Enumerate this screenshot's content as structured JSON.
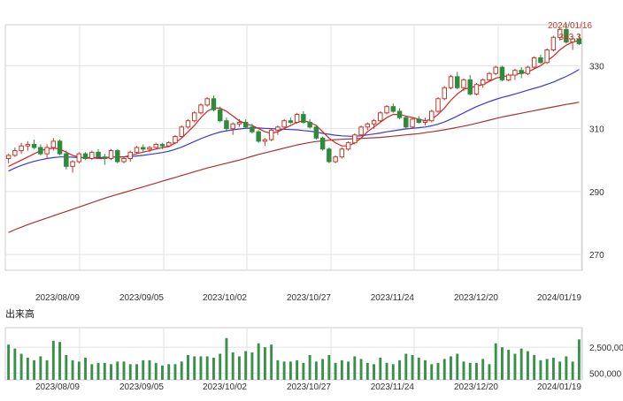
{
  "chart_data": [
    {
      "type": "candlestick",
      "x_tick_labels": [
        "2023/08/09",
        "2023/09/05",
        "2023/10/02",
        "2023/10/27",
        "2023/11/24",
        "2023/12/20",
        "2024/01/19"
      ],
      "y_tick_labels": [
        "330",
        "310",
        "290",
        "270"
      ],
      "ylim": [
        265,
        343
      ],
      "grid": true,
      "annotation": {
        "date": "2024/01/16",
        "value": "343.3"
      },
      "series": [
        {
          "type": "candlestick",
          "values": [
            [
              300.5,
              302,
              299,
              301.5
            ],
            [
              301.5,
              304,
              301,
              303
            ],
            [
              303,
              305.5,
              302,
              304.5
            ],
            [
              304.5,
              306,
              303,
              305
            ],
            [
              305,
              306.5,
              303.5,
              304
            ],
            [
              304,
              305,
              301.5,
              302
            ],
            [
              302,
              305,
              300.5,
              304
            ],
            [
              304,
              307,
              303,
              306
            ],
            [
              306,
              306.5,
              301.5,
              302
            ],
            [
              302,
              303,
              297,
              298
            ],
            [
              298,
              300,
              296,
              299.5
            ],
            [
              299.5,
              302.5,
              299,
              302
            ],
            [
              302,
              302.5,
              300,
              300.5
            ],
            [
              300.5,
              303,
              300,
              302.5
            ],
            [
              302.5,
              303.5,
              300.5,
              301
            ],
            [
              301,
              302,
              298.5,
              300.5
            ],
            [
              300.5,
              303.5,
              300,
              303
            ],
            [
              303,
              303.5,
              299,
              299.5
            ],
            [
              299.5,
              301,
              299,
              300.5
            ],
            [
              300.5,
              303,
              299.5,
              302.5
            ],
            [
              302.5,
              304.5,
              302,
              304
            ],
            [
              304,
              305,
              302.5,
              303.5
            ],
            [
              303.5,
              304.5,
              302.5,
              304
            ],
            [
              304,
              305.5,
              303.5,
              305
            ],
            [
              305,
              305.5,
              303.5,
              304.5
            ],
            [
              304.5,
              306,
              304,
              305.5
            ],
            [
              305.5,
              308,
              305,
              307.5
            ],
            [
              307.5,
              311,
              307,
              310.5
            ],
            [
              310.5,
              313,
              310,
              312.5
            ],
            [
              312.5,
              315.5,
              312,
              315
            ],
            [
              315,
              318,
              314.5,
              317.5
            ],
            [
              317.5,
              320,
              317,
              319.5
            ],
            [
              319.5,
              320.5,
              315.5,
              316
            ],
            [
              316,
              317,
              312,
              312.5
            ],
            [
              312.5,
              313.5,
              309,
              310
            ],
            [
              310,
              312,
              308,
              311.5
            ],
            [
              311.5,
              313,
              310.5,
              312
            ],
            [
              312,
              313,
              310,
              310.5
            ],
            [
              310.5,
              311.5,
              308.5,
              309
            ],
            [
              309,
              309.5,
              305.5,
              306
            ],
            [
              306,
              307,
              304.5,
              306.5
            ],
            [
              306.5,
              310,
              306,
              309.5
            ],
            [
              309.5,
              311,
              308,
              310.5
            ],
            [
              310.5,
              313,
              310,
              312.5
            ],
            [
              312.5,
              313.5,
              311.5,
              312
            ],
            [
              312,
              315,
              311.5,
              314.5
            ],
            [
              314.5,
              315.5,
              311.5,
              312
            ],
            [
              312,
              313,
              310,
              310.5
            ],
            [
              310.5,
              311,
              306.5,
              307
            ],
            [
              307,
              307.5,
              303,
              303.5
            ],
            [
              303.5,
              304,
              299,
              299.5
            ],
            [
              299.5,
              301.5,
              299,
              301
            ],
            [
              301,
              304,
              300.5,
              303.5
            ],
            [
              303.5,
              306,
              303,
              305.5
            ],
            [
              305.5,
              308.5,
              305,
              308
            ],
            [
              308,
              311,
              307.5,
              310.5
            ],
            [
              310.5,
              312,
              309.5,
              311.5
            ],
            [
              311.5,
              313,
              310,
              312.5
            ],
            [
              312.5,
              315.5,
              312,
              315
            ],
            [
              315,
              317.5,
              314.5,
              317
            ],
            [
              317,
              318,
              315,
              315.5
            ],
            [
              315.5,
              316.5,
              313,
              313.5
            ],
            [
              313.5,
              314,
              310,
              310.5
            ],
            [
              310.5,
              313.5,
              310,
              313
            ],
            [
              313,
              314,
              311.5,
              312
            ],
            [
              312,
              313.5,
              311,
              312.5
            ],
            [
              312.5,
              316,
              312,
              315.5
            ],
            [
              315.5,
              320,
              315,
              319.5
            ],
            [
              319.5,
              323.5,
              319,
              323
            ],
            [
              323,
              327,
              322.5,
              326.5
            ],
            [
              326.5,
              328,
              322.5,
              323
            ],
            [
              323,
              326,
              322,
              325.5
            ],
            [
              325.5,
              327,
              320.5,
              321
            ],
            [
              321,
              324.5,
              320.5,
              324
            ],
            [
              324,
              326,
              323,
              325.5
            ],
            [
              325.5,
              328,
              325,
              327.5
            ],
            [
              327.5,
              330,
              327,
              329.5
            ],
            [
              329.5,
              330,
              325,
              325.5
            ],
            [
              325.5,
              327.5,
              325,
              327
            ],
            [
              327,
              329,
              325.5,
              328.5
            ],
            [
              328.5,
              329.5,
              326,
              327.5
            ],
            [
              327.5,
              330,
              327,
              329.5
            ],
            [
              329.5,
              333,
              329,
              332.5
            ],
            [
              332.5,
              333.5,
              330.5,
              331
            ],
            [
              331,
              335.5,
              330.5,
              335
            ],
            [
              335,
              339.5,
              334.5,
              339
            ],
            [
              339,
              342,
              338,
              341.5
            ],
            [
              341.5,
              343.3,
              337,
              337.5
            ],
            [
              337.5,
              339.5,
              335,
              338.5
            ],
            [
              338.5,
              340,
              336.5,
              337
            ]
          ]
        },
        {
          "type": "line",
          "name": "",
          "values": [
            298,
            299,
            300,
            301,
            302,
            303,
            303.5,
            303.8,
            303.5,
            302.5,
            301.5,
            301,
            300.5,
            300.8,
            300.5,
            300.5,
            301,
            301,
            301,
            301.5,
            302,
            302.5,
            303,
            303.5,
            304,
            304.3,
            305.5,
            307,
            309,
            311,
            313.5,
            315.5,
            316.5,
            316.5,
            315.5,
            314,
            312.5,
            311.5,
            311,
            310,
            309,
            308.5,
            309,
            310,
            311,
            312,
            312.5,
            312,
            311,
            309,
            307,
            305.5,
            304.5,
            304.5,
            305.5,
            307,
            309,
            310.5,
            312,
            313.5,
            314.5,
            314.5,
            314,
            313.5,
            313,
            312.5,
            313,
            314.5,
            316.5,
            319,
            321,
            322.5,
            323,
            323.5,
            324,
            325,
            326,
            326.5,
            326.8,
            327.2,
            327.6,
            328,
            329,
            330,
            331.5,
            333,
            335,
            336.5,
            337.5,
            338
          ]
        },
        {
          "type": "line",
          "name": "",
          "values": [
            296.5,
            297.5,
            298.3,
            299,
            299.6,
            300.1,
            300.5,
            300.8,
            301,
            301,
            300.9,
            300.8,
            300.8,
            300.8,
            300.8,
            300.8,
            300.9,
            301,
            301,
            301.1,
            301.3,
            301.5,
            301.8,
            302.1,
            302.4,
            302.8,
            303.4,
            304.1,
            305,
            305.9,
            306.8,
            307.6,
            308.3,
            308.9,
            309.3,
            309.6,
            309.9,
            310.1,
            310.2,
            310.2,
            310.1,
            310,
            309.9,
            309.8,
            309.7,
            309.6,
            309.4,
            309.2,
            308.9,
            308.5,
            308.2,
            307.9,
            307.7,
            307.6,
            307.6,
            307.7,
            308,
            308.3,
            308.6,
            309,
            309.3,
            309.6,
            309.9,
            310.1,
            310.3,
            310.5,
            310.9,
            311.4,
            312.1,
            313,
            314,
            315,
            316,
            317,
            317.8,
            318.6,
            319.3,
            319.9,
            320.4,
            321,
            321.6,
            322.2,
            322.8,
            323.4,
            324.1,
            324.8,
            325.7,
            326.6,
            327.6,
            328.8
          ]
        },
        {
          "type": "line",
          "name": "",
          "values": [
            277,
            277.9,
            278.7,
            279.5,
            280.2,
            280.9,
            281.6,
            282.3,
            283,
            283.7,
            284.4,
            285.1,
            285.8,
            286.5,
            287.2,
            287.9,
            288.5,
            289.1,
            289.7,
            290.3,
            290.9,
            291.5,
            292.1,
            292.7,
            293.3,
            293.9,
            294.5,
            295.1,
            295.7,
            296.3,
            296.9,
            297.5,
            298,
            298.5,
            299,
            299.5,
            300,
            300.6,
            301.2,
            301.8,
            302.3,
            302.8,
            303.3,
            303.8,
            304.3,
            304.8,
            305.2,
            305.6,
            305.9,
            306.1,
            306.3,
            306.5,
            306.6,
            306.7,
            306.8,
            306.9,
            307,
            307.1,
            307.2,
            307.4,
            307.6,
            307.8,
            308,
            308.2,
            308.4,
            308.7,
            309,
            309.3,
            309.6,
            310,
            310.4,
            310.8,
            311.2,
            311.7,
            312.2,
            312.7,
            313.2,
            313.7,
            314.1,
            314.5,
            314.9,
            315.3,
            315.7,
            316.1,
            316.5,
            316.9,
            317.3,
            317.7,
            318,
            318.4
          ]
        }
      ]
    },
    {
      "type": "bar",
      "title": "出来高",
      "x_tick_labels": [
        "2023/08/09",
        "2023/09/05",
        "2023/10/02",
        "2023/10/27",
        "2023/11/24",
        "2023/12/20",
        "2024/01/19"
      ],
      "y_tick_labels": [
        "2,500,00",
        "500,000"
      ],
      "ylim": [
        0,
        4000000
      ],
      "values": [
        2700000,
        2400000,
        2000000,
        1700000,
        1500000,
        1800000,
        1500000,
        3000000,
        2900000,
        1900000,
        1500000,
        1400000,
        1700000,
        1200000,
        1300000,
        1300000,
        1200000,
        1400000,
        1400000,
        1200000,
        1200000,
        1500000,
        1500000,
        1300000,
        1100000,
        1200000,
        1200000,
        1400000,
        1900000,
        1800000,
        1800000,
        1800000,
        1700000,
        2000000,
        3200000,
        2100000,
        1800000,
        2200000,
        2100000,
        2800000,
        2500000,
        2700000,
        1500000,
        1400000,
        1400000,
        1500000,
        1300000,
        1900000,
        1400000,
        1600000,
        1900000,
        1300000,
        1500000,
        1400000,
        1800000,
        1600000,
        1300000,
        1200000,
        1700000,
        1300000,
        1200000,
        1500000,
        2000000,
        1900000,
        1700000,
        1500000,
        1200000,
        1300000,
        1600000,
        1800000,
        2000000,
        1400000,
        1300000,
        1300000,
        1600000,
        1200000,
        2800000,
        2500000,
        2300000,
        2000000,
        2400000,
        2200000,
        1900000,
        1500000,
        1600000,
        1700000,
        1400000,
        1800000,
        1400000,
        3100000
      ]
    }
  ]
}
